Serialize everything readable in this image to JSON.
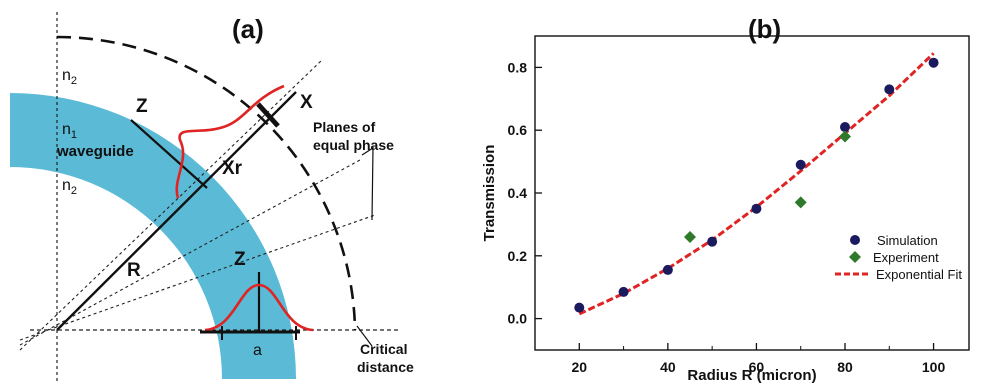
{
  "figure": {
    "panel_a_label": "(a)",
    "panel_b_label": "(b)"
  },
  "diagram": {
    "medium_top": "n",
    "medium_top_sub": "2",
    "core": "n",
    "core_sub": "1",
    "core_desc": "waveguide",
    "medium_bottom": "n",
    "medium_bottom_sub": "2",
    "z_upper": "Z",
    "x_axis": "X",
    "xr": "Xr",
    "radius": "R",
    "z_lower": "Z",
    "width": "a",
    "phase_line1": "Planes of",
    "phase_line2": "equal phase",
    "critical_line1": "Critical",
    "critical_line2": "distance",
    "waveguide_color": "#5bbad6",
    "field_color": "#e02424"
  },
  "chart_data": {
    "type": "scatter",
    "xlabel": "Radius R  (micron)",
    "ylabel": "Transmission",
    "xlim": [
      10,
      108
    ],
    "ylim": [
      -0.1,
      0.9
    ],
    "xticks": [
      "20",
      "40",
      "60",
      "80",
      "100"
    ],
    "xticks_values": [
      20,
      40,
      60,
      80,
      100
    ],
    "xticks_minor": [
      30,
      50,
      70,
      90
    ],
    "yticks": [
      "0.0",
      "0.2",
      "0.4",
      "0.6",
      "0.8"
    ],
    "yticks_values": [
      0.0,
      0.2,
      0.4,
      0.6,
      0.8
    ],
    "legend_position": "bottom-right",
    "series": [
      {
        "name": "Simulation",
        "marker": "circle",
        "color": "#1c1a5e",
        "x": [
          20,
          30,
          40,
          50,
          60,
          70,
          80,
          90,
          100
        ],
        "y": [
          0.035,
          0.085,
          0.155,
          0.245,
          0.35,
          0.49,
          0.61,
          0.73,
          0.815
        ]
      },
      {
        "name": "Experiment",
        "marker": "diamond",
        "color": "#2f7a2a",
        "x": [
          45,
          70,
          80
        ],
        "y": [
          0.26,
          0.37,
          0.58
        ]
      },
      {
        "name": "Exponential Fit",
        "marker": "dashed-line",
        "color": "#e02424",
        "x": [
          20,
          30,
          40,
          50,
          60,
          70,
          80,
          90,
          100
        ],
        "y": [
          0.015,
          0.08,
          0.16,
          0.25,
          0.355,
          0.47,
          0.59,
          0.71,
          0.845
        ]
      }
    ]
  }
}
